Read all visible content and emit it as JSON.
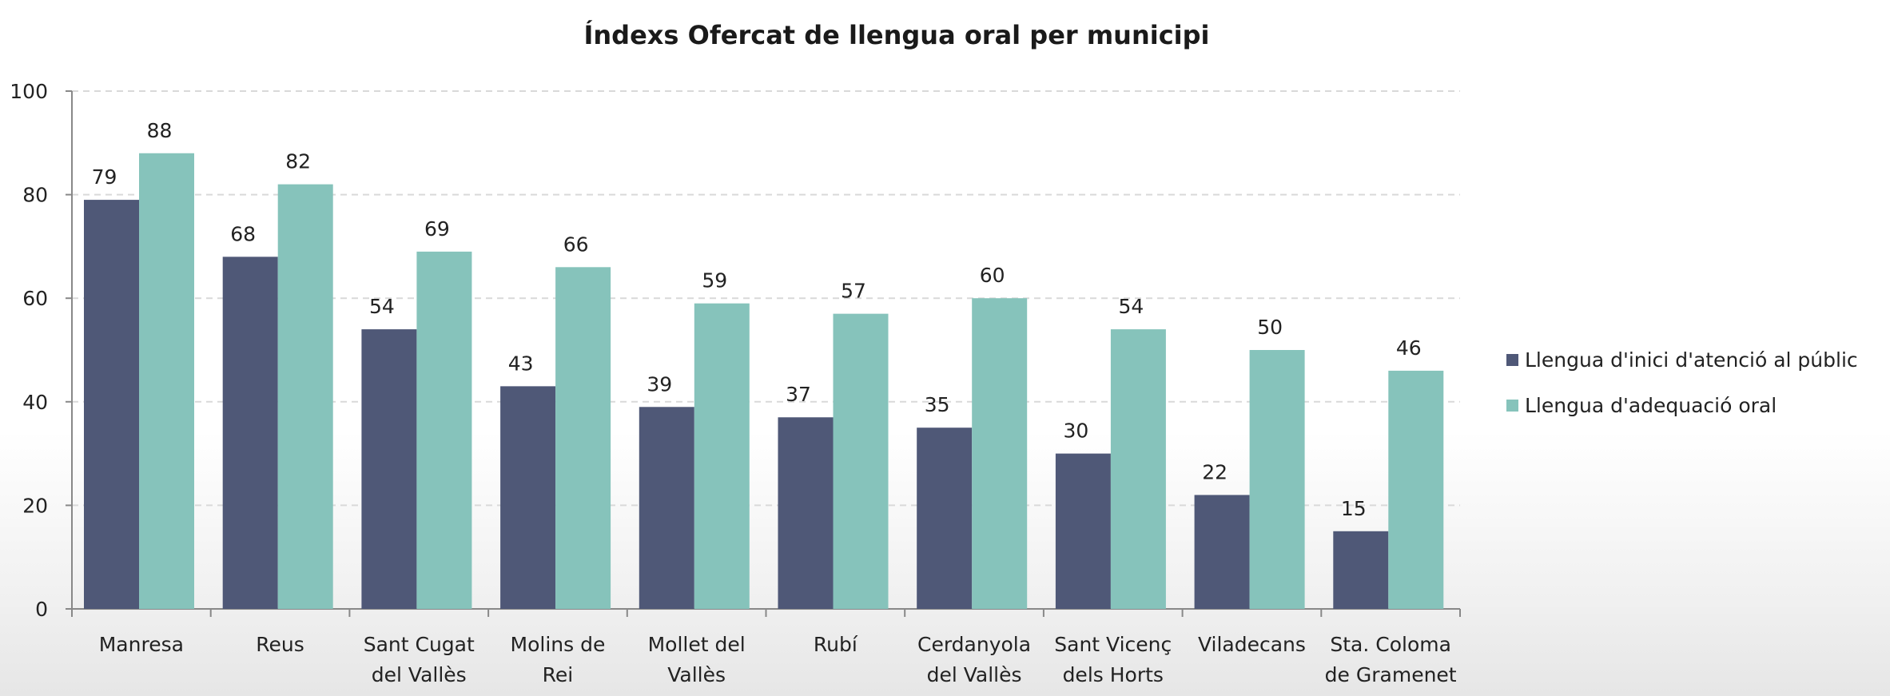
{
  "chart_data": {
    "type": "bar",
    "title": "Índexs Ofercat de llengua oral per municipi",
    "categories": [
      [
        "Manresa"
      ],
      [
        "Reus"
      ],
      [
        "Sant Cugat",
        "del Vallès"
      ],
      [
        "Molins de",
        "Rei"
      ],
      [
        "Mollet del",
        "Vallès"
      ],
      [
        "Rubí"
      ],
      [
        "Cerdanyola",
        "del Vallès"
      ],
      [
        "Sant Vicenç",
        "dels Horts"
      ],
      [
        "Viladecans"
      ],
      [
        "Sta. Coloma",
        "de Gramenet"
      ]
    ],
    "series": [
      {
        "name": "Llengua d'inici d'atenció al públic",
        "color": "#4f5877",
        "values": [
          79,
          68,
          54,
          43,
          39,
          37,
          35,
          30,
          22,
          15
        ]
      },
      {
        "name": "Llengua d'adequació oral",
        "color": "#86c3bb",
        "values": [
          88,
          82,
          69,
          66,
          59,
          57,
          60,
          54,
          50,
          46
        ]
      }
    ],
    "ylim": [
      0,
      100
    ],
    "yticks": [
      0,
      20,
      40,
      60,
      80,
      100
    ],
    "xlabel": "",
    "ylabel": "",
    "grid": true,
    "legend_position": "right"
  }
}
